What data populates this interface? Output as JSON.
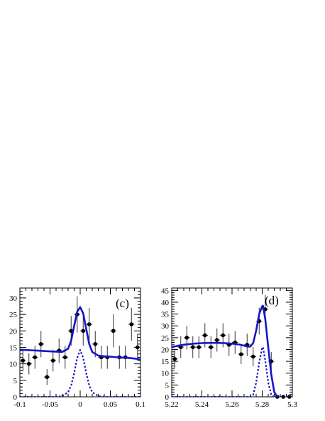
{
  "chart_data": [
    {
      "type": "scatter",
      "panel_label": "(c)",
      "xlim": [
        -0.1,
        0.1
      ],
      "ylim": [
        0,
        33
      ],
      "x_ticks": [
        -0.1,
        -0.05,
        0,
        0.05,
        0.1
      ],
      "x_tick_labels": [
        "-0.1",
        "-0.05",
        "0",
        "0.05",
        "0.1"
      ],
      "y_ticks": [
        0,
        5,
        10,
        15,
        20,
        25,
        30
      ],
      "y_tick_labels": [
        "0",
        "5",
        "10",
        "15",
        "20",
        "25",
        "30"
      ],
      "grid": false,
      "series": [
        {
          "kind": "data-points",
          "x": [
            -0.095,
            -0.085,
            -0.075,
            -0.065,
            -0.055,
            -0.045,
            -0.035,
            -0.025,
            -0.015,
            -0.005,
            0.005,
            0.015,
            0.025,
            0.035,
            0.045,
            0.055,
            0.065,
            0.075,
            0.085,
            0.095
          ],
          "y": [
            11,
            10,
            12,
            16,
            6,
            11,
            14,
            12,
            20,
            25,
            20,
            22,
            16,
            12,
            12,
            20,
            12,
            12,
            22,
            15
          ],
          "yerr": [
            3.3,
            3.2,
            3.5,
            4.0,
            2.4,
            3.3,
            3.7,
            3.5,
            4.5,
            5.5,
            4.5,
            5.0,
            4.0,
            3.5,
            3.5,
            5.0,
            3.5,
            3.5,
            5.0,
            4.0
          ],
          "xerr": 0.005
        },
        {
          "kind": "total-fit-curve",
          "style": "solid",
          "x": [
            -0.1,
            -0.09,
            -0.08,
            -0.07,
            -0.06,
            -0.05,
            -0.04,
            -0.03,
            -0.02,
            -0.015,
            -0.01,
            -0.005,
            0,
            0.005,
            0.01,
            0.015,
            0.02,
            0.03,
            0.04,
            0.05,
            0.06,
            0.07,
            0.08,
            0.09,
            0.1
          ],
          "y": [
            14.3,
            14.2,
            14.1,
            14.0,
            13.9,
            13.8,
            13.7,
            13.6,
            14.6,
            17.0,
            21.5,
            25.8,
            27.2,
            25.3,
            20.6,
            16.0,
            13.6,
            12.5,
            12.3,
            12.2,
            12.0,
            11.9,
            11.8,
            11.6,
            11.4
          ]
        },
        {
          "kind": "signal-curve",
          "style": "dotted",
          "x": [
            -0.1,
            -0.04,
            -0.03,
            -0.02,
            -0.015,
            -0.01,
            -0.005,
            0,
            0.005,
            0.01,
            0.015,
            0.02,
            0.03,
            0.04,
            0.1
          ],
          "y": [
            0,
            0,
            0.2,
            1.4,
            3.4,
            7.2,
            11.8,
            14.2,
            11.8,
            7.2,
            3.4,
            1.4,
            0.2,
            0,
            0
          ]
        }
      ],
      "colors": {
        "fit": "#1515c8",
        "points": "#000000"
      }
    },
    {
      "type": "scatter",
      "panel_label": "(d)",
      "xlim": [
        5.22,
        5.3
      ],
      "ylim": [
        0,
        46
      ],
      "x_ticks": [
        5.22,
        5.24,
        5.26,
        5.28,
        5.3
      ],
      "x_tick_labels": [
        "5.22",
        "5.24",
        "5.26",
        "5.28",
        "5.3"
      ],
      "y_ticks": [
        0,
        5,
        10,
        15,
        20,
        25,
        30,
        35,
        40,
        45
      ],
      "y_tick_labels": [
        "0",
        "5",
        "10",
        "15",
        "20",
        "25",
        "30",
        "35",
        "40",
        "45"
      ],
      "grid": false,
      "series": [
        {
          "kind": "data-points",
          "x": [
            5.222,
            5.226,
            5.23,
            5.234,
            5.238,
            5.242,
            5.246,
            5.25,
            5.254,
            5.258,
            5.262,
            5.266,
            5.27,
            5.274,
            5.278,
            5.282,
            5.286,
            5.29,
            5.294,
            5.298
          ],
          "y": [
            16,
            21,
            25,
            21,
            21,
            26,
            21,
            24,
            26,
            22,
            23,
            18,
            22,
            17,
            32,
            37,
            15,
            0,
            0,
            0
          ],
          "yerr": [
            4.0,
            4.6,
            5.0,
            4.6,
            4.6,
            5.1,
            4.6,
            4.9,
            5.1,
            4.7,
            4.8,
            4.2,
            4.7,
            4.1,
            5.7,
            6.1,
            3.9,
            0,
            0,
            0
          ],
          "xerr": 0.002
        },
        {
          "kind": "total-fit-curve",
          "style": "solid",
          "x": [
            5.22,
            5.225,
            5.23,
            5.235,
            5.24,
            5.245,
            5.25,
            5.255,
            5.26,
            5.265,
            5.27,
            5.272,
            5.274,
            5.276,
            5.278,
            5.28,
            5.2805,
            5.282,
            5.284,
            5.286,
            5.288,
            5.29
          ],
          "y": [
            21.0,
            21.7,
            22.2,
            22.5,
            22.7,
            22.8,
            22.8,
            22.7,
            22.5,
            22.1,
            21.3,
            21.2,
            22.7,
            28.0,
            35.0,
            38.3,
            38.5,
            33.0,
            21.0,
            9.5,
            2.0,
            0
          ]
        },
        {
          "kind": "signal-curve",
          "style": "dotted",
          "x": [
            5.22,
            5.272,
            5.274,
            5.276,
            5.278,
            5.28,
            5.2805,
            5.282,
            5.284,
            5.286,
            5.288,
            5.3
          ],
          "y": [
            0,
            0,
            0.8,
            6.0,
            14.5,
            20.8,
            21.0,
            15.5,
            6.0,
            1.0,
            0,
            0
          ]
        }
      ],
      "colors": {
        "fit": "#1515c8",
        "points": "#000000"
      }
    }
  ]
}
